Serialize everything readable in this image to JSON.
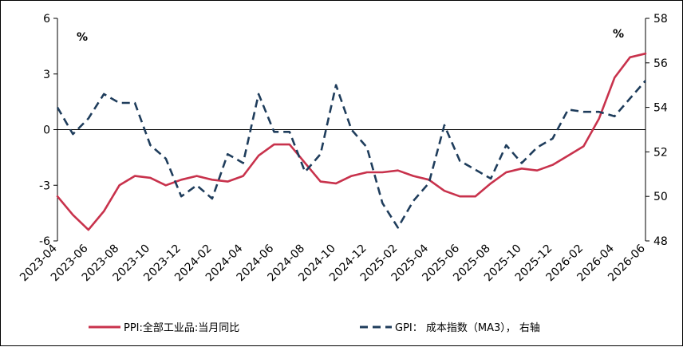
{
  "chart_data": {
    "type": "line",
    "title": "",
    "x": [
      "2023-04",
      "2023-05",
      "2023-06",
      "2023-07",
      "2023-08",
      "2023-09",
      "2023-10",
      "2023-11",
      "2023-12",
      "2024-01",
      "2024-02",
      "2024-03",
      "2024-04",
      "2024-05",
      "2024-06",
      "2024-07",
      "2024-08",
      "2024-09",
      "2024-10",
      "2024-11",
      "2024-12",
      "2025-01",
      "2025-02",
      "2025-03",
      "2025-04",
      "2025-05",
      "2025-06",
      "2025-07",
      "2025-08",
      "2025-09",
      "2025-10",
      "2025-11",
      "2025-12",
      "2026-01",
      "2026-02",
      "2026-03",
      "2026-04",
      "2026-05",
      "2026-06"
    ],
    "x_tick_labels": [
      "2023-04",
      "2023-06",
      "2023-08",
      "2023-10",
      "2023-12",
      "2024-02",
      "2024-04",
      "2024-06",
      "2024-08",
      "2024-10",
      "2024-12",
      "2025-02",
      "2025-04",
      "2025-06",
      "2025-08",
      "2025-10",
      "2025-12",
      "2026-02",
      "2026-04",
      "2026-06"
    ],
    "y_left": {
      "unit_label": "%",
      "ylim": [
        -6,
        6
      ],
      "ticks": [
        6,
        3,
        0,
        -3,
        -6
      ]
    },
    "y_right": {
      "unit_label": "%",
      "ylim": [
        48,
        58
      ],
      "ticks": [
        58,
        56,
        54,
        52,
        50,
        48
      ]
    },
    "series": [
      {
        "name": "PPI:全部工业品:当月同比",
        "axis": "left",
        "style": "solid",
        "color": "#c8324c",
        "values": [
          -3.6,
          -4.6,
          -5.4,
          -4.4,
          -3.0,
          -2.5,
          -2.6,
          -3.0,
          -2.7,
          -2.5,
          -2.7,
          -2.8,
          -2.5,
          -1.4,
          -0.8,
          -0.8,
          -1.8,
          -2.8,
          -2.9,
          -2.5,
          -2.3,
          -2.3,
          -2.2,
          -2.5,
          -2.7,
          -3.3,
          -3.6,
          -3.6,
          -2.9,
          -2.3,
          -2.1,
          -2.2,
          -1.9,
          -1.4,
          -0.9,
          0.6,
          2.8,
          3.9,
          4.1
        ]
      },
      {
        "name": "GPI：成本指数（MA3），右轴",
        "axis": "right",
        "style": "dashed",
        "color": "#1f3d5c",
        "values": [
          54.0,
          52.8,
          53.5,
          54.6,
          54.2,
          54.2,
          52.3,
          51.7,
          50.0,
          50.5,
          49.9,
          51.9,
          51.5,
          54.6,
          52.9,
          52.9,
          51.1,
          51.9,
          55.0,
          53.0,
          52.2,
          49.7,
          48.6,
          49.8,
          50.6,
          53.2,
          51.6,
          51.2,
          50.8,
          52.3,
          51.5,
          52.2,
          52.6,
          53.9,
          53.8,
          53.8,
          53.6,
          54.4,
          55.2
        ]
      }
    ],
    "grid": false,
    "legend_position": "bottom"
  },
  "legend": {
    "ppi_label": "PPI:全部工业品:当月同比",
    "gpi_label": "GPI： 成本指数（MA3）， 右轴"
  }
}
